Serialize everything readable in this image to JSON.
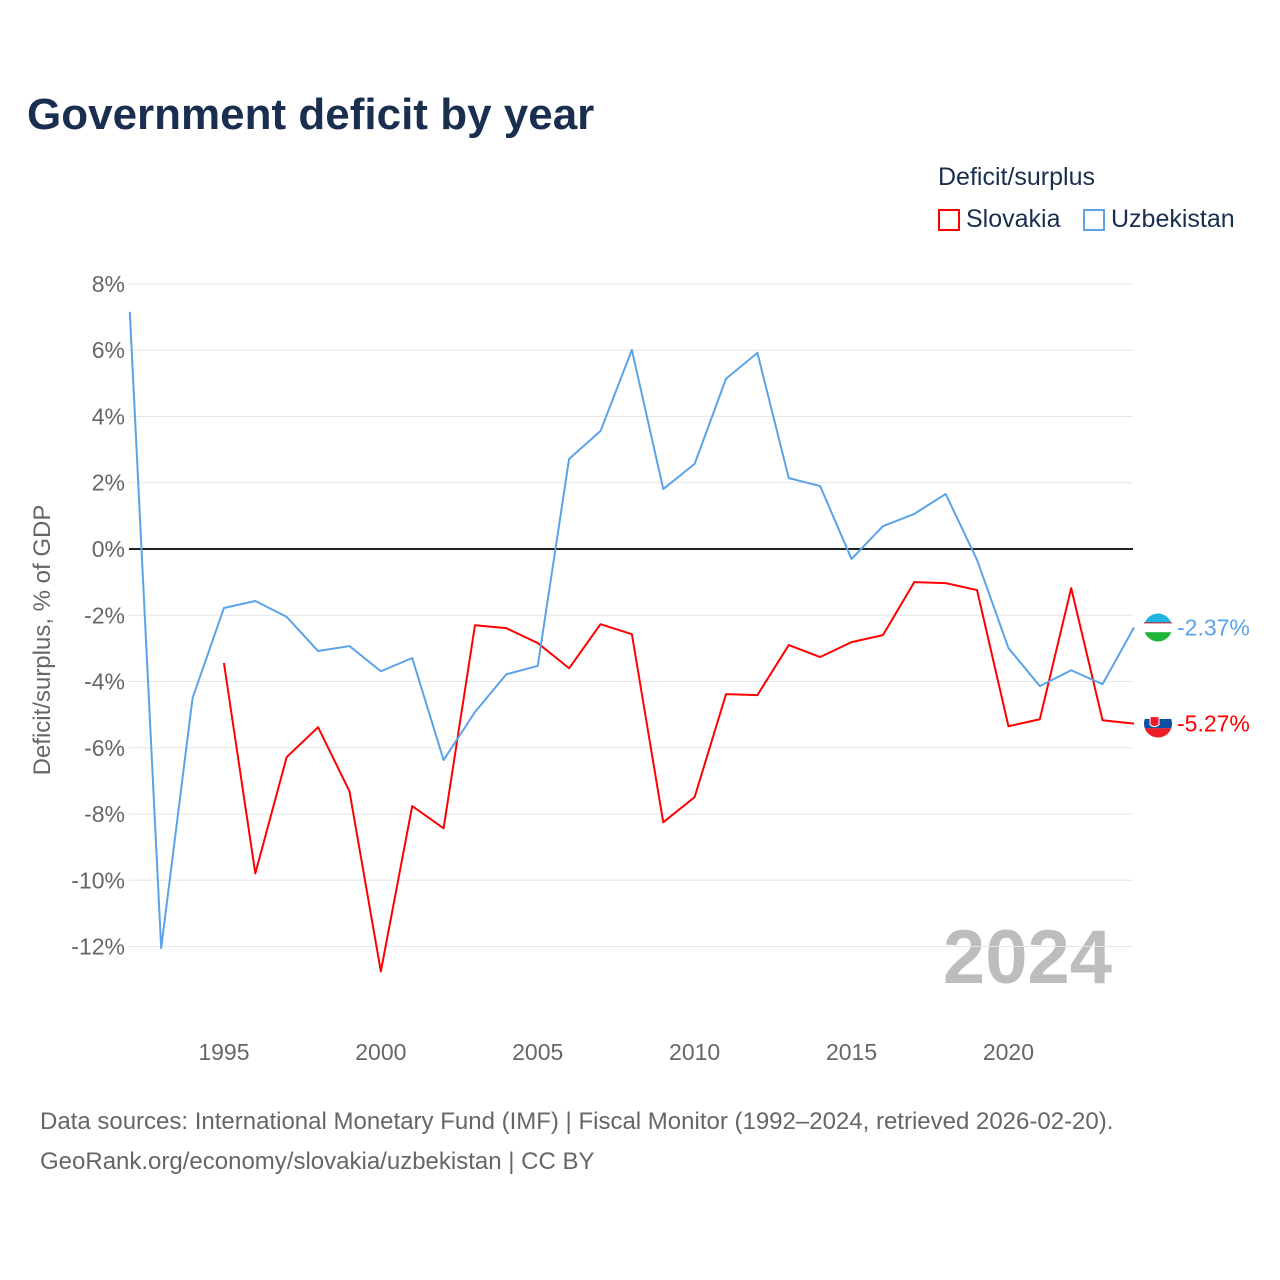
{
  "chart_data": {
    "type": "line",
    "title": "Government deficit by year",
    "ylabel": "Deficit/surplus, % of GDP",
    "xlabel": "",
    "ylim": [
      -14,
      8
    ],
    "xlim": [
      1992,
      2024
    ],
    "yticks": [
      8,
      6,
      4,
      2,
      0,
      -2,
      -4,
      -6,
      -8,
      -10,
      -12
    ],
    "ytick_labels": [
      "8%",
      "6%",
      "4%",
      "2%",
      "0%",
      "-2%",
      "-4%",
      "-6%",
      "-8%",
      "-10%",
      "-12%"
    ],
    "xticks": [
      1995,
      2000,
      2005,
      2010,
      2015,
      2020
    ],
    "xtick_labels": [
      "1995",
      "2000",
      "2005",
      "2010",
      "2015",
      "2020"
    ],
    "legend_title": "Deficit/surplus",
    "legend_position": "top-right",
    "year_label": "2024",
    "series": [
      {
        "name": "Slovakia",
        "color": "#ff0000",
        "end_label": "-5.27%",
        "flag": "slovakia-flag",
        "x": [
          1995,
          1996,
          1997,
          1998,
          1999,
          2000,
          2001,
          2002,
          2003,
          2004,
          2005,
          2006,
          2007,
          2008,
          2009,
          2010,
          2011,
          2012,
          2013,
          2014,
          2015,
          2016,
          2017,
          2018,
          2019,
          2020,
          2021,
          2022,
          2023,
          2024
        ],
        "values": [
          -3.44,
          -9.79,
          -6.28,
          -5.38,
          -7.31,
          -12.75,
          -7.76,
          -8.43,
          -2.3,
          -2.39,
          -2.84,
          -3.6,
          -2.27,
          -2.57,
          -8.25,
          -7.49,
          -4.38,
          -4.41,
          -2.9,
          -3.26,
          -2.81,
          -2.6,
          -1.0,
          -1.03,
          -1.24,
          -5.35,
          -5.14,
          -1.18,
          -5.17,
          -5.27
        ]
      },
      {
        "name": "Uzbekistan",
        "color": "#5ba3e8",
        "end_label": "-2.37%",
        "flag": "uzbekistan-flag",
        "x": [
          1992,
          1993,
          1994,
          1995,
          1996,
          1997,
          1998,
          1999,
          2000,
          2001,
          2002,
          2003,
          2004,
          2005,
          2006,
          2007,
          2008,
          2009,
          2010,
          2011,
          2012,
          2013,
          2014,
          2015,
          2016,
          2017,
          2018,
          2019,
          2020,
          2021,
          2022,
          2023,
          2024
        ],
        "values": [
          7.16,
          -12.05,
          -4.5,
          -1.78,
          -1.57,
          -2.05,
          -3.08,
          -2.93,
          -3.69,
          -3.29,
          -6.37,
          -4.92,
          -3.78,
          -3.53,
          2.72,
          3.56,
          6.01,
          1.81,
          2.57,
          5.14,
          5.92,
          2.14,
          1.9,
          -0.3,
          0.69,
          1.06,
          1.66,
          -0.33,
          -2.99,
          -4.14,
          -3.66,
          -4.08,
          -2.37
        ]
      }
    ]
  },
  "footer": {
    "line1": "Data sources: International Monetary Fund (IMF) | Fiscal Monitor (1992–2024, retrieved 2026-02-20).",
    "line2": "GeoRank.org/economy/slovakia/uzbekistan | CC BY"
  }
}
